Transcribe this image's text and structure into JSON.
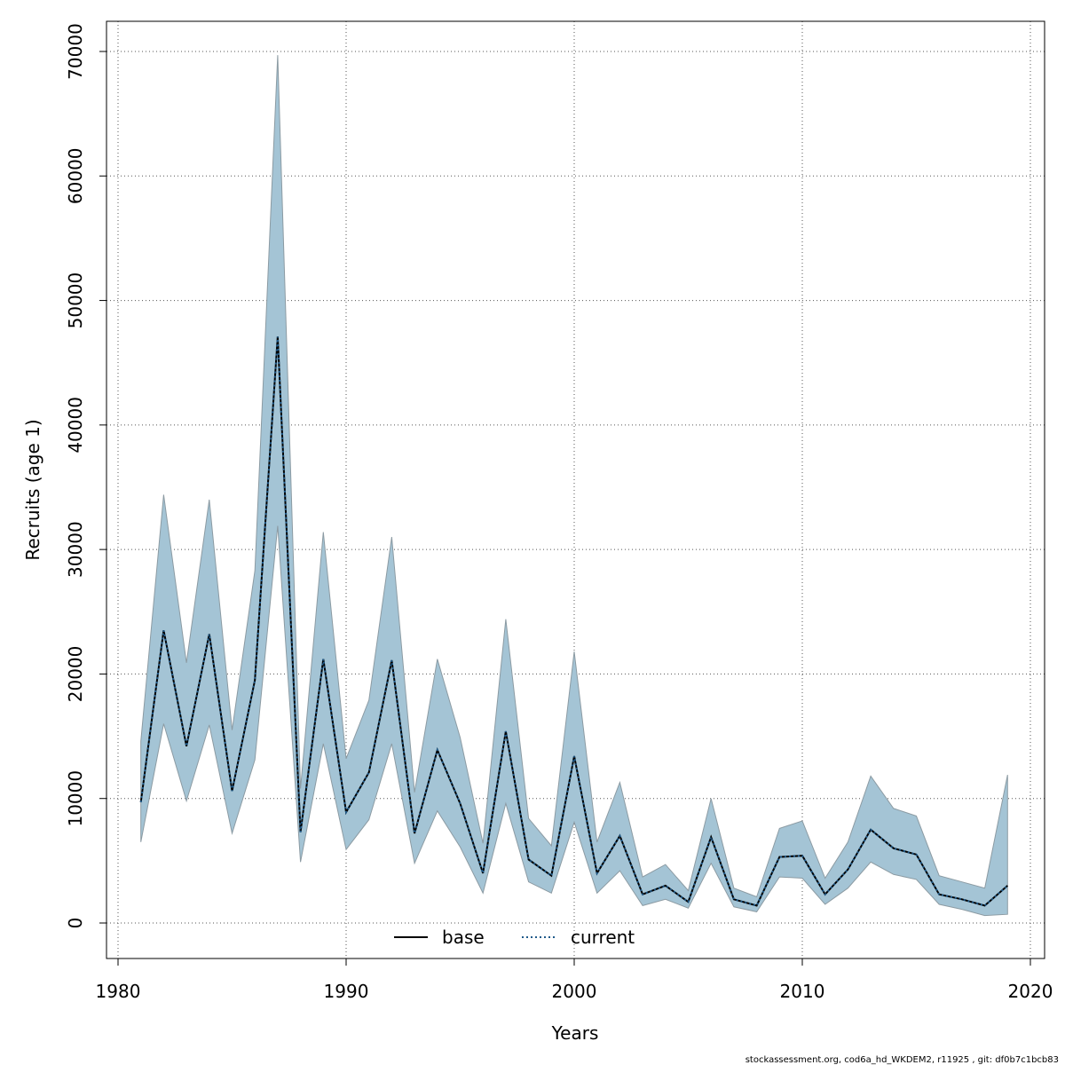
{
  "chart_data": {
    "type": "line",
    "title": "",
    "xlabel": "Years",
    "ylabel": "Recruits (age 1)",
    "xlim": [
      1980,
      2020
    ],
    "ylim": [
      -3000,
      75000
    ],
    "x_ticks": [
      1980,
      1990,
      2000,
      2010,
      2020
    ],
    "y_ticks": [
      0,
      10000,
      20000,
      30000,
      40000,
      50000,
      60000,
      70000
    ],
    "grid": true,
    "x": [
      1981,
      1982,
      1983,
      1984,
      1985,
      1986,
      1987,
      1988,
      1989,
      1990,
      1991,
      1992,
      1993,
      1994,
      1995,
      1996,
      1997,
      1998,
      1999,
      2000,
      2001,
      2002,
      2003,
      2004,
      2005,
      2006,
      2007,
      2008,
      2009,
      2010,
      2011,
      2012,
      2013,
      2014,
      2015,
      2016,
      2017,
      2018,
      2019
    ],
    "series": [
      {
        "name": "base",
        "color": "#000000",
        "style": "solid",
        "values": [
          9700,
          23500,
          14200,
          23200,
          10600,
          19500,
          47100,
          7300,
          21200,
          8900,
          12100,
          21100,
          7200,
          13900,
          9600,
          4000,
          15400,
          5100,
          3800,
          13400,
          4000,
          7000,
          2300,
          3000,
          1700,
          6900,
          1900,
          1400,
          5300,
          5400,
          2300,
          4300,
          7500,
          6000,
          5500,
          2300,
          1900,
          1400,
          3000
        ]
      },
      {
        "name": "current",
        "color": "#1f5a8a",
        "style": "dotted",
        "values": [
          9700,
          23500,
          14200,
          23200,
          10600,
          19500,
          47100,
          7300,
          21200,
          8900,
          12100,
          21100,
          7200,
          13900,
          9600,
          4000,
          15400,
          5100,
          3800,
          13400,
          4000,
          7000,
          2300,
          3000,
          1700,
          6900,
          1900,
          1400,
          5300,
          5400,
          2300,
          4300,
          7500,
          6000,
          5500,
          2300,
          1900,
          1400,
          3000
        ]
      }
    ],
    "band": {
      "color": "#a4c4d5",
      "edge_color": "#8c9ba3",
      "lower": [
        6500,
        16000,
        9800,
        15900,
        7200,
        13100,
        31900,
        4900,
        14400,
        5900,
        8300,
        14400,
        4800,
        9000,
        6100,
        2400,
        9600,
        3300,
        2400,
        8100,
        2400,
        4200,
        1400,
        1900,
        1200,
        4800,
        1300,
        900,
        3700,
        3600,
        1500,
        2800,
        4900,
        3900,
        3500,
        1500,
        1100,
        600,
        700
      ],
      "upper": [
        14600,
        34400,
        20900,
        34000,
        15500,
        28300,
        69700,
        10800,
        31400,
        13200,
        17900,
        31000,
        10500,
        21200,
        14900,
        6400,
        24400,
        8400,
        6200,
        21800,
        6500,
        11300,
        3700,
        4700,
        2600,
        10000,
        2800,
        2100,
        7600,
        8200,
        3600,
        6500,
        11800,
        9200,
        8600,
        3800,
        3300,
        2800,
        11900
      ]
    },
    "legend": {
      "position": "bottom-center",
      "entries": [
        {
          "label": "base",
          "style": "solid",
          "color": "#000000"
        },
        {
          "label": "current",
          "style": "dotted",
          "color": "#1f5a8a"
        }
      ]
    }
  },
  "footer": {
    "text": "stockassessment.org, cod6a_hd_WKDEM2, r11925 , git: df0b7c1bcb83"
  }
}
